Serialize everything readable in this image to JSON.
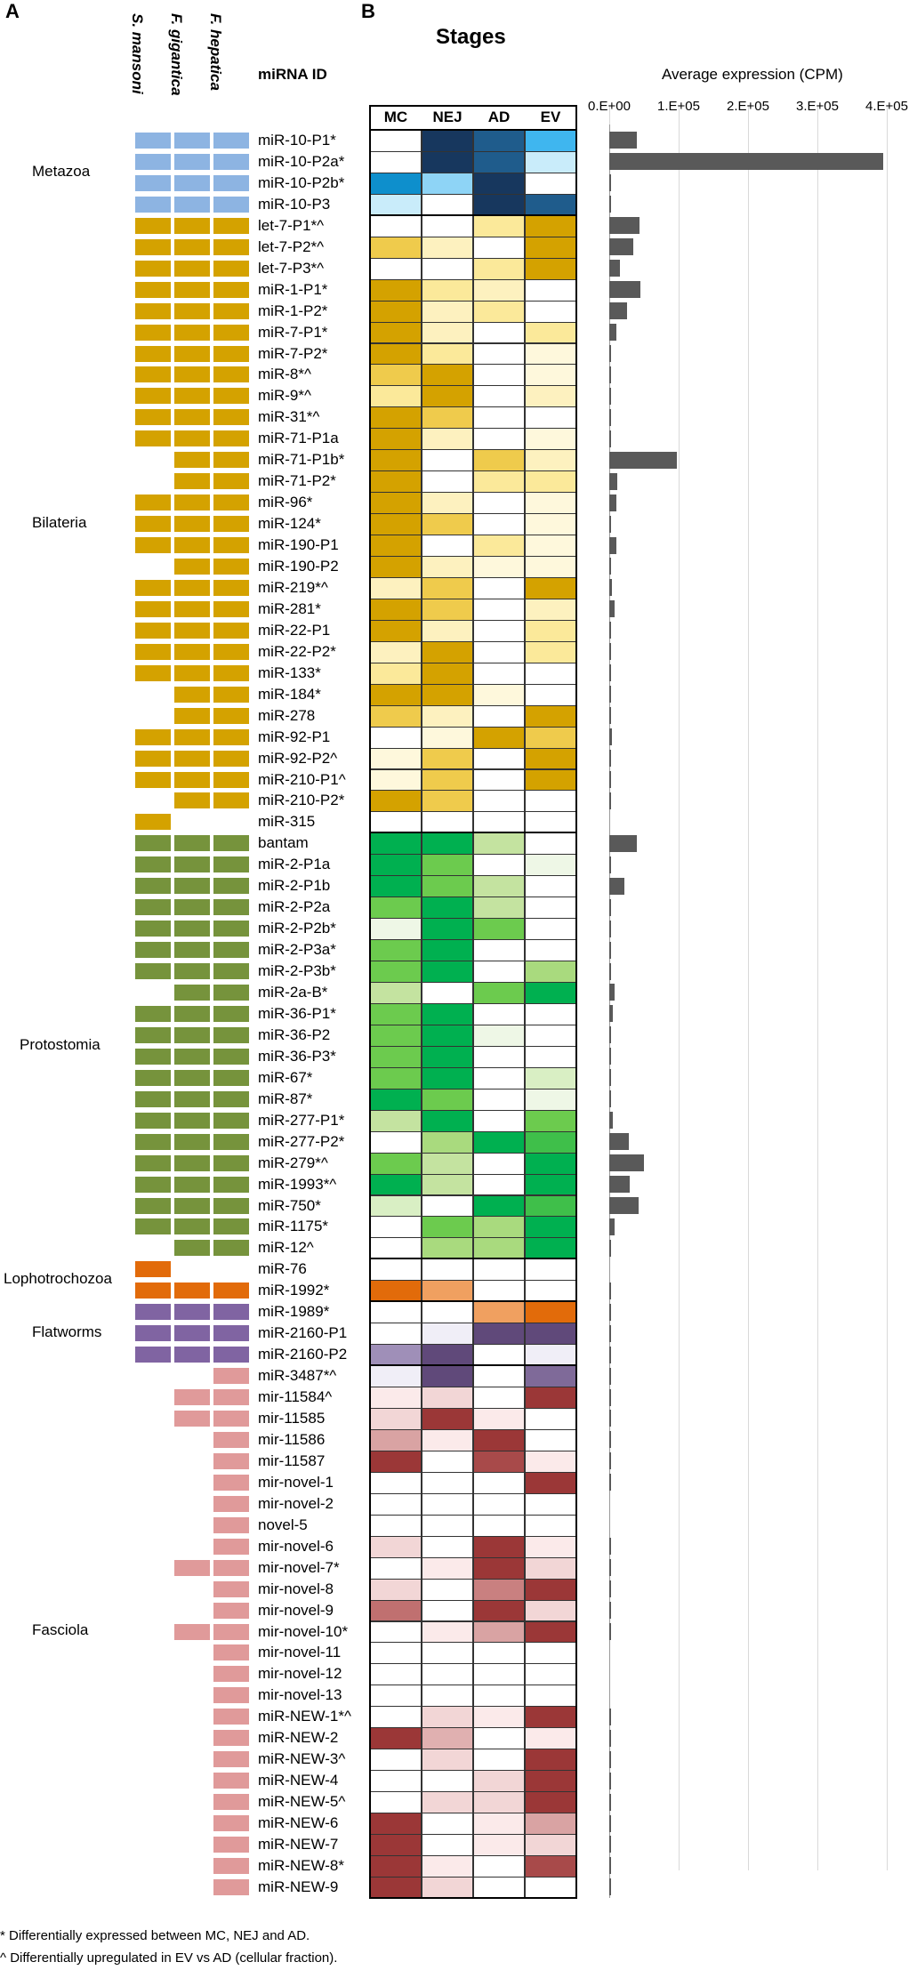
{
  "panels": {
    "a": "A",
    "b": "B"
  },
  "species_headers": [
    "S. mansoni",
    "F. gigantica",
    "F. hepatica"
  ],
  "mirna_header": "miRNA ID",
  "stages_title": "Stages",
  "footnotes": [
    "* Differentially expressed between MC, NEJ and AD.",
    "^ Differentially upregulated in EV vs AD (cellular fraction)."
  ],
  "colors": {
    "Metazoa": "#8db4e2",
    "Bilateria": "#d4a200",
    "Protostomia": "#76933c",
    "Lophotrochozoa": "#e26b0a",
    "Flatworms": "#8064a2",
    "Fasciola": "#e09a9a"
  },
  "groups": [
    {
      "name": "Metazoa",
      "start": 0,
      "end": 3
    },
    {
      "name": "Bilateria",
      "start": 4,
      "end": 32
    },
    {
      "name": "Protostomia",
      "start": 33,
      "end": 52
    },
    {
      "name": "Lophotrochozoa",
      "start": 53,
      "end": 54
    },
    {
      "name": "Flatworms",
      "start": 55,
      "end": 57
    },
    {
      "name": "Fasciola",
      "start": 58,
      "end": 82
    }
  ],
  "mirnas": [
    "miR-10-P1*",
    "miR-10-P2a*",
    "miR-10-P2b*",
    "miR-10-P3",
    "let-7-P1*^",
    "let-7-P2*^",
    "let-7-P3*^",
    "miR-1-P1*",
    "miR-1-P2*",
    "miR-7-P1*",
    "miR-7-P2*",
    "miR-8*^",
    "miR-9*^",
    "miR-31*^",
    "miR-71-P1a",
    "miR-71-P1b*",
    "miR-71-P2*",
    "miR-96*",
    "miR-124*",
    "miR-190-P1",
    "miR-190-P2",
    "miR-219*^",
    "miR-281*",
    "miR-22-P1",
    "miR-22-P2*",
    "miR-133*",
    "miR-184*",
    "miR-278",
    "miR-92-P1",
    "miR-92-P2^",
    "miR-210-P1^",
    "miR-210-P2*",
    "miR-315",
    "bantam",
    "miR-2-P1a",
    "miR-2-P1b",
    "miR-2-P2a",
    "miR-2-P2b*",
    "miR-2-P3a*",
    "miR-2-P3b*",
    "miR-2a-B*",
    "miR-36-P1*",
    "miR-36-P2",
    "miR-36-P3*",
    "miR-67*",
    "miR-87*",
    "miR-277-P1*",
    "miR-277-P2*",
    "miR-279*^",
    "miR-1993*^",
    "miR-750*",
    "miR-1175*",
    "miR-12^",
    "miR-76",
    "miR-1992*",
    "miR-1989*",
    "miR-2160-P1",
    "miR-2160-P2",
    "miR-3487*^",
    "mir-11584^",
    "mir-11585",
    "mir-11586",
    "mir-11587",
    "mir-novel-1",
    "mir-novel-2",
    "novel-5",
    "mir-novel-6",
    "mir-novel-7*",
    "mir-novel-8",
    "mir-novel-9",
    "mir-novel-10*",
    "mir-novel-11",
    "mir-novel-12",
    "mir-novel-13",
    "miR-NEW-1*^",
    "miR-NEW-2",
    "miR-NEW-3^",
    "miR-NEW-4",
    "miR-NEW-5^",
    "miR-NEW-6",
    "miR-NEW-7",
    "miR-NEW-8*",
    "miR-NEW-9"
  ],
  "presence": [
    [
      1,
      1,
      1
    ],
    [
      1,
      1,
      1
    ],
    [
      1,
      1,
      1
    ],
    [
      1,
      1,
      1
    ],
    [
      1,
      1,
      1
    ],
    [
      1,
      1,
      1
    ],
    [
      1,
      1,
      1
    ],
    [
      1,
      1,
      1
    ],
    [
      1,
      1,
      1
    ],
    [
      1,
      1,
      1
    ],
    [
      1,
      1,
      1
    ],
    [
      1,
      1,
      1
    ],
    [
      1,
      1,
      1
    ],
    [
      1,
      1,
      1
    ],
    [
      1,
      1,
      1
    ],
    [
      0,
      1,
      1
    ],
    [
      0,
      1,
      1
    ],
    [
      1,
      1,
      1
    ],
    [
      1,
      1,
      1
    ],
    [
      1,
      1,
      1
    ],
    [
      0,
      1,
      1
    ],
    [
      1,
      1,
      1
    ],
    [
      1,
      1,
      1
    ],
    [
      1,
      1,
      1
    ],
    [
      1,
      1,
      1
    ],
    [
      1,
      1,
      1
    ],
    [
      0,
      1,
      1
    ],
    [
      0,
      1,
      1
    ],
    [
      1,
      1,
      1
    ],
    [
      1,
      1,
      1
    ],
    [
      1,
      1,
      1
    ],
    [
      0,
      1,
      1
    ],
    [
      1,
      0,
      0
    ],
    [
      1,
      1,
      1
    ],
    [
      1,
      1,
      1
    ],
    [
      1,
      1,
      1
    ],
    [
      1,
      1,
      1
    ],
    [
      1,
      1,
      1
    ],
    [
      1,
      1,
      1
    ],
    [
      1,
      1,
      1
    ],
    [
      0,
      1,
      1
    ],
    [
      1,
      1,
      1
    ],
    [
      1,
      1,
      1
    ],
    [
      1,
      1,
      1
    ],
    [
      1,
      1,
      1
    ],
    [
      1,
      1,
      1
    ],
    [
      1,
      1,
      1
    ],
    [
      1,
      1,
      1
    ],
    [
      1,
      1,
      1
    ],
    [
      1,
      1,
      1
    ],
    [
      1,
      1,
      1
    ],
    [
      1,
      1,
      1
    ],
    [
      0,
      1,
      1
    ],
    [
      1,
      0,
      0
    ],
    [
      1,
      1,
      1
    ],
    [
      1,
      1,
      1
    ],
    [
      1,
      1,
      1
    ],
    [
      1,
      1,
      1
    ],
    [
      0,
      0,
      1
    ],
    [
      0,
      1,
      1
    ],
    [
      0,
      1,
      1
    ],
    [
      0,
      0,
      1
    ],
    [
      0,
      0,
      1
    ],
    [
      0,
      0,
      1
    ],
    [
      0,
      0,
      1
    ],
    [
      0,
      0,
      1
    ],
    [
      0,
      0,
      1
    ],
    [
      0,
      1,
      1
    ],
    [
      0,
      0,
      1
    ],
    [
      0,
      0,
      1
    ],
    [
      0,
      1,
      1
    ],
    [
      0,
      0,
      1
    ],
    [
      0,
      0,
      1
    ],
    [
      0,
      0,
      1
    ],
    [
      0,
      0,
      1
    ],
    [
      0,
      0,
      1
    ],
    [
      0,
      0,
      1
    ],
    [
      0,
      0,
      1
    ],
    [
      0,
      0,
      1
    ],
    [
      0,
      0,
      1
    ],
    [
      0,
      0,
      1
    ],
    [
      0,
      0,
      1
    ],
    [
      0,
      0,
      1
    ]
  ],
  "heatmap_colors": [
    [
      "#ffffff",
      "#17375e",
      "#1f5c8c",
      "#3fb6ef"
    ],
    [
      "#ffffff",
      "#17375e",
      "#1f5c8c",
      "#c9ecfa"
    ],
    [
      "#0e8fcc",
      "#8ed4f6",
      "#17375e",
      "#ffffff"
    ],
    [
      "#c9ecfa",
      "#ffffff",
      "#17375e",
      "#1f5c8c"
    ],
    [
      "#ffffff",
      "#ffffff",
      "#fbe99a",
      "#d4a200"
    ],
    [
      "#efcb4c",
      "#fdf1bf",
      "#ffffff",
      "#d4a200"
    ],
    [
      "#ffffff",
      "#ffffff",
      "#fbe99a",
      "#d4a200"
    ],
    [
      "#d4a200",
      "#fbe99a",
      "#fdf1bf",
      "#ffffff"
    ],
    [
      "#d4a200",
      "#fdf1bf",
      "#fbe99a",
      "#ffffff"
    ],
    [
      "#d4a200",
      "#fdf1bf",
      "#ffffff",
      "#fbe99a"
    ],
    [
      "#d4a200",
      "#fbe99a",
      "#ffffff",
      "#fef8dc"
    ],
    [
      "#efcb4c",
      "#d4a200",
      "#ffffff",
      "#fef8dc"
    ],
    [
      "#fbe99a",
      "#d4a200",
      "#ffffff",
      "#fdf1bf"
    ],
    [
      "#d4a200",
      "#efcb4c",
      "#ffffff",
      "#ffffff"
    ],
    [
      "#d4a200",
      "#fdf1bf",
      "#ffffff",
      "#fef8dc"
    ],
    [
      "#d4a200",
      "#ffffff",
      "#efcb4c",
      "#fdf1bf"
    ],
    [
      "#d4a200",
      "#ffffff",
      "#fbe99a",
      "#fbe99a"
    ],
    [
      "#d4a200",
      "#fdf1bf",
      "#ffffff",
      "#fef8dc"
    ],
    [
      "#d4a200",
      "#efcb4c",
      "#ffffff",
      "#fef8dc"
    ],
    [
      "#d4a200",
      "#ffffff",
      "#fbe99a",
      "#fef8dc"
    ],
    [
      "#d4a200",
      "#fdf1bf",
      "#fef8dc",
      "#fef8dc"
    ],
    [
      "#fdf1bf",
      "#efcb4c",
      "#ffffff",
      "#d4a200"
    ],
    [
      "#d4a200",
      "#efcb4c",
      "#ffffff",
      "#fdf1bf"
    ],
    [
      "#d4a200",
      "#fdf1bf",
      "#ffffff",
      "#fbe99a"
    ],
    [
      "#fdf1bf",
      "#d4a200",
      "#ffffff",
      "#fbe99a"
    ],
    [
      "#fbe99a",
      "#d4a200",
      "#ffffff",
      "#ffffff"
    ],
    [
      "#d4a200",
      "#d4a200",
      "#fef8dc",
      "#ffffff"
    ],
    [
      "#efcb4c",
      "#fdf1bf",
      "#ffffff",
      "#d4a200"
    ],
    [
      "#ffffff",
      "#fef8dc",
      "#d4a200",
      "#efcb4c"
    ],
    [
      "#fef8dc",
      "#efcb4c",
      "#ffffff",
      "#d4a200"
    ],
    [
      "#fef8dc",
      "#efcb4c",
      "#ffffff",
      "#d4a200"
    ],
    [
      "#d4a200",
      "#efcb4c",
      "#ffffff",
      "#ffffff"
    ],
    [
      "#ffffff",
      "#ffffff",
      "#ffffff",
      "#ffffff"
    ],
    [
      "#00b050",
      "#00b050",
      "#c4e3a0",
      "#ffffff"
    ],
    [
      "#00b050",
      "#6ccb4e",
      "#ffffff",
      "#eef7e6"
    ],
    [
      "#00b050",
      "#6ccb4e",
      "#c4e3a0",
      "#ffffff"
    ],
    [
      "#6ccb4e",
      "#00b050",
      "#c4e3a0",
      "#ffffff"
    ],
    [
      "#eef7e6",
      "#00b050",
      "#6ccb4e",
      "#ffffff"
    ],
    [
      "#6ccb4e",
      "#00b050",
      "#ffffff",
      "#ffffff"
    ],
    [
      "#6ccb4e",
      "#00b050",
      "#ffffff",
      "#a9da7e"
    ],
    [
      "#c4e3a0",
      "#ffffff",
      "#6ccb4e",
      "#00b050"
    ],
    [
      "#6ccb4e",
      "#00b050",
      "#ffffff",
      "#ffffff"
    ],
    [
      "#6ccb4e",
      "#00b050",
      "#eef7e6",
      "#ffffff"
    ],
    [
      "#6ccb4e",
      "#00b050",
      "#ffffff",
      "#ffffff"
    ],
    [
      "#6ccb4e",
      "#00b050",
      "#ffffff",
      "#d9efc4"
    ],
    [
      "#00b050",
      "#6ccb4e",
      "#ffffff",
      "#eef7e6"
    ],
    [
      "#c4e3a0",
      "#00b050",
      "#ffffff",
      "#6ccb4e"
    ],
    [
      "#ffffff",
      "#a9da7e",
      "#00b050",
      "#3fbf4a"
    ],
    [
      "#6ccb4e",
      "#c4e3a0",
      "#ffffff",
      "#00b050"
    ],
    [
      "#00b050",
      "#c4e3a0",
      "#ffffff",
      "#00b050"
    ],
    [
      "#d9efc4",
      "#ffffff",
      "#00b050",
      "#3fbf4a"
    ],
    [
      "#ffffff",
      "#6ccb4e",
      "#a9da7e",
      "#00b050"
    ],
    [
      "#ffffff",
      "#a9da7e",
      "#a9da7e",
      "#00b050"
    ],
    [
      "#ffffff",
      "#ffffff",
      "#ffffff",
      "#ffffff"
    ],
    [
      "#e26b0a",
      "#f0a060",
      "#ffffff",
      "#ffffff"
    ],
    [
      "#ffffff",
      "#ffffff",
      "#f0a060",
      "#e26b0a"
    ],
    [
      "#ffffff",
      "#f0eef7",
      "#60497a",
      "#60497a"
    ],
    [
      "#9f8fb8",
      "#60497a",
      "#ffffff",
      "#f0eef7"
    ],
    [
      "#f0eef7",
      "#60497a",
      "#ffffff",
      "#7f6a99"
    ],
    [
      "#fbeaea",
      "#f2d6d6",
      "#ffffff",
      "#9b3737"
    ],
    [
      "#f2d6d6",
      "#9b3737",
      "#fbeaea",
      "#ffffff"
    ],
    [
      "#d9a3a3",
      "#fbeaea",
      "#9b3737",
      "#ffffff"
    ],
    [
      "#9b3737",
      "#ffffff",
      "#a84a4a",
      "#fbeaea"
    ],
    [
      "#ffffff",
      "#ffffff",
      "#ffffff",
      "#9b3737"
    ],
    [
      "#ffffff",
      "#ffffff",
      "#ffffff",
      "#ffffff"
    ],
    [
      "#ffffff",
      "#ffffff",
      "#ffffff",
      "#ffffff"
    ],
    [
      "#f2d6d6",
      "#ffffff",
      "#9b3737",
      "#fbeaea"
    ],
    [
      "#ffffff",
      "#fbeaea",
      "#9b3737",
      "#f2d6d6"
    ],
    [
      "#f2d6d6",
      "#ffffff",
      "#c98080",
      "#9b3737"
    ],
    [
      "#c07070",
      "#ffffff",
      "#9b3737",
      "#f2d6d6"
    ],
    [
      "#ffffff",
      "#fbeaea",
      "#d9a3a3",
      "#9b3737"
    ],
    [
      "#ffffff",
      "#ffffff",
      "#ffffff",
      "#ffffff"
    ],
    [
      "#ffffff",
      "#ffffff",
      "#ffffff",
      "#ffffff"
    ],
    [
      "#ffffff",
      "#ffffff",
      "#ffffff",
      "#ffffff"
    ],
    [
      "#ffffff",
      "#f2d6d6",
      "#fbeaea",
      "#9b3737"
    ],
    [
      "#9b3737",
      "#e0b0b0",
      "#ffffff",
      "#fbeaea"
    ],
    [
      "#ffffff",
      "#f2d6d6",
      "#ffffff",
      "#9b3737"
    ],
    [
      "#ffffff",
      "#ffffff",
      "#f2d6d6",
      "#9b3737"
    ],
    [
      "#ffffff",
      "#f2d6d6",
      "#f2d6d6",
      "#9b3737"
    ],
    [
      "#9b3737",
      "#ffffff",
      "#fbeaea",
      "#d9a3a3"
    ],
    [
      "#9b3737",
      "#ffffff",
      "#fbeaea",
      "#f2d6d6"
    ],
    [
      "#9b3737",
      "#fbeaea",
      "#ffffff",
      "#a84a4a"
    ],
    [
      "#9b3737",
      "#f2d6d6",
      "#ffffff",
      "#ffffff"
    ]
  ],
  "chart_data": {
    "type": "bar",
    "orientation": "horizontal",
    "title": "Average expression (CPM)",
    "stages": [
      "MC",
      "NEJ",
      "AD",
      "EV"
    ],
    "xlim": [
      0,
      400000
    ],
    "x_ticks": [
      "0.E+00",
      "1.E+05",
      "2.E+05",
      "3.E+05",
      "4.E+05"
    ],
    "categories": [
      "miR-10-P1*",
      "miR-10-P2a*",
      "miR-10-P2b*",
      "miR-10-P3",
      "let-7-P1*^",
      "let-7-P2*^",
      "let-7-P3*^",
      "miR-1-P1*",
      "miR-1-P2*",
      "miR-7-P1*",
      "miR-7-P2*",
      "miR-8*^",
      "miR-9*^",
      "miR-31*^",
      "miR-71-P1a",
      "miR-71-P1b*",
      "miR-71-P2*",
      "miR-96*",
      "miR-124*",
      "miR-190-P1",
      "miR-190-P2",
      "miR-219*^",
      "miR-281*",
      "miR-22-P1",
      "miR-22-P2*",
      "miR-133*",
      "miR-184*",
      "miR-278",
      "miR-92-P1",
      "miR-92-P2^",
      "miR-210-P1^",
      "miR-210-P2*",
      "miR-315",
      "bantam",
      "miR-2-P1a",
      "miR-2-P1b",
      "miR-2-P2a",
      "miR-2-P2b*",
      "miR-2-P3a*",
      "miR-2-P3b*",
      "miR-2a-B*",
      "miR-36-P1*",
      "miR-36-P2",
      "miR-36-P3*",
      "miR-67*",
      "miR-87*",
      "miR-277-P1*",
      "miR-277-P2*",
      "miR-279*^",
      "miR-1993*^",
      "miR-750*",
      "miR-1175*",
      "miR-12^",
      "miR-76",
      "miR-1992*",
      "miR-1989*",
      "miR-2160-P1",
      "miR-2160-P2",
      "miR-3487*^",
      "mir-11584^",
      "mir-11585",
      "mir-11586",
      "mir-11587",
      "mir-novel-1",
      "mir-novel-2",
      "novel-5",
      "mir-novel-6",
      "mir-novel-7*",
      "mir-novel-8",
      "mir-novel-9",
      "mir-novel-10*",
      "mir-novel-11",
      "mir-novel-12",
      "mir-novel-13",
      "miR-NEW-1*^",
      "miR-NEW-2",
      "miR-NEW-3^",
      "miR-NEW-4",
      "miR-NEW-5^",
      "miR-NEW-6",
      "miR-NEW-7",
      "miR-NEW-8*",
      "miR-NEW-9"
    ],
    "values": [
      40000,
      395000,
      3000,
      2000,
      43000,
      35000,
      15000,
      45000,
      25000,
      10000,
      3000,
      2000,
      2000,
      1500,
      2000,
      97000,
      12000,
      10000,
      3000,
      10000,
      3000,
      4000,
      8000,
      2000,
      2000,
      1000,
      1000,
      1000,
      4000,
      2000,
      2000,
      1000,
      0,
      40000,
      1000,
      22000,
      1000,
      1000,
      1000,
      1000,
      8000,
      5000,
      2000,
      2000,
      2000,
      2000,
      5000,
      28000,
      50000,
      30000,
      42000,
      8000,
      2000,
      0,
      1000,
      2000,
      1000,
      1000,
      1000,
      1000,
      500,
      500,
      500,
      500,
      0,
      0,
      500,
      500,
      500,
      500,
      500,
      0,
      0,
      0,
      500,
      500,
      500,
      500,
      500,
      500,
      500,
      500,
      500
    ]
  }
}
